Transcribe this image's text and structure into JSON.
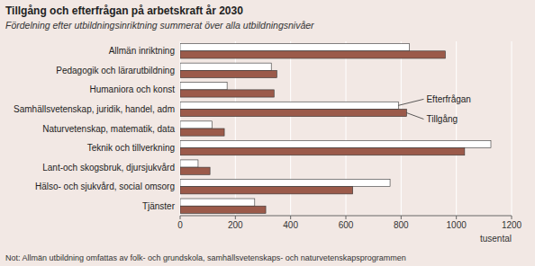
{
  "chart_data": {
    "type": "bar",
    "orientation": "horizontal",
    "title": "Tillgång och efterfrågan på arbetskraft år 2030",
    "subtitle": "Fördelning efter utbildningsinriktning summerat över alla utbildningsnivåer",
    "note": "Not: Allmän utbildning omfattas av folk- och grundskola, samhällsvetenskaps- och naturvetenskapsprogrammen",
    "xlabel": "tusental",
    "categories": [
      "Allmän inriktning",
      "Pedagogik och lärarutbildning",
      "Humaniora och konst",
      "Samhällsvetenskap, juridik, handel, adm",
      "Naturvetenskap, matematik, data",
      "Teknik och tillverkning",
      "Lant-och skogsbruk, djursjukvård",
      "Hälso- och sjukvård, social omsorg",
      "Tjänster"
    ],
    "series": [
      {
        "name": "Efterfrågan",
        "color": "#ffffff",
        "values": [
          830,
          330,
          170,
          790,
          115,
          1125,
          65,
          760,
          270
        ]
      },
      {
        "name": "Tillgång",
        "color": "#9b5a4a",
        "values": [
          960,
          350,
          340,
          820,
          160,
          1030,
          108,
          625,
          310
        ]
      }
    ],
    "xlim": [
      0,
      1200
    ],
    "xticks": [
      0,
      200,
      400,
      600,
      800,
      1000,
      1200
    ],
    "grid": true
  }
}
